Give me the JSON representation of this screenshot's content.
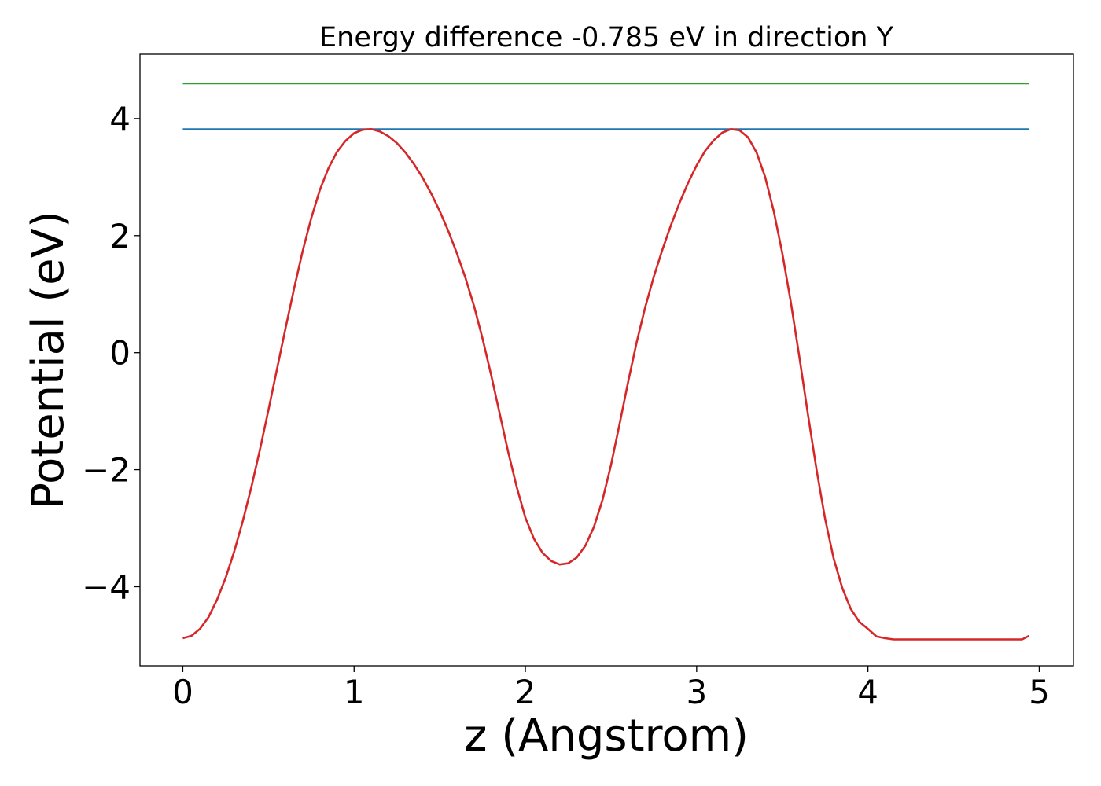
{
  "chart_data": {
    "type": "line",
    "title": "Energy difference -0.785 eV in direction Y",
    "xlabel": "z (Angstrom)",
    "ylabel": "Potential (eV)",
    "xlim": [
      -0.25,
      5.2
    ],
    "ylim": [
      -5.35,
      5.1
    ],
    "xticks": [
      0,
      1,
      2,
      3,
      4,
      5
    ],
    "yticks": [
      -4,
      -2,
      0,
      2,
      4
    ],
    "ytick_labels": [
      "−4",
      "−2",
      "0",
      "2",
      "4"
    ],
    "grid": false,
    "series": [
      {
        "color": "#2ca02c",
        "x": [
          0,
          4.94
        ],
        "y": [
          4.6,
          4.6
        ]
      },
      {
        "color": "#1f77b4",
        "x": [
          0,
          4.94
        ],
        "y": [
          3.82,
          3.82
        ]
      },
      {
        "color": "#d62728",
        "x": [
          0,
          0.05,
          0.1,
          0.15,
          0.2,
          0.25,
          0.3,
          0.35,
          0.4,
          0.45,
          0.5,
          0.55,
          0.6,
          0.65,
          0.7,
          0.75,
          0.8,
          0.85,
          0.9,
          0.95,
          1.0,
          1.05,
          1.1,
          1.15,
          1.2,
          1.25,
          1.3,
          1.35,
          1.4,
          1.45,
          1.5,
          1.55,
          1.6,
          1.65,
          1.7,
          1.75,
          1.8,
          1.85,
          1.9,
          1.95,
          2.0,
          2.05,
          2.1,
          2.15,
          2.2,
          2.25,
          2.3,
          2.35,
          2.4,
          2.45,
          2.5,
          2.55,
          2.6,
          2.65,
          2.7,
          2.75,
          2.8,
          2.85,
          2.9,
          2.95,
          3.0,
          3.05,
          3.1,
          3.15,
          3.2,
          3.25,
          3.3,
          3.35,
          3.4,
          3.45,
          3.5,
          3.55,
          3.6,
          3.65,
          3.7,
          3.75,
          3.8,
          3.85,
          3.9,
          3.95,
          4.0,
          4.05,
          4.1,
          4.15,
          4.2,
          4.25,
          4.3,
          4.35,
          4.4,
          4.45,
          4.5,
          4.55,
          4.6,
          4.65,
          4.7,
          4.75,
          4.8,
          4.85,
          4.9,
          4.94
        ],
        "y": [
          -4.88,
          -4.84,
          -4.72,
          -4.52,
          -4.22,
          -3.85,
          -3.4,
          -2.88,
          -2.3,
          -1.66,
          -0.98,
          -0.28,
          0.42,
          1.1,
          1.74,
          2.3,
          2.78,
          3.15,
          3.43,
          3.62,
          3.75,
          3.81,
          3.82,
          3.78,
          3.7,
          3.58,
          3.42,
          3.22,
          2.99,
          2.72,
          2.42,
          2.08,
          1.7,
          1.28,
          0.8,
          0.24,
          -0.38,
          -1.04,
          -1.7,
          -2.3,
          -2.82,
          -3.18,
          -3.42,
          -3.56,
          -3.62,
          -3.6,
          -3.5,
          -3.3,
          -2.98,
          -2.52,
          -1.92,
          -1.22,
          -0.5,
          0.18,
          0.78,
          1.3,
          1.76,
          2.18,
          2.56,
          2.9,
          3.2,
          3.45,
          3.63,
          3.76,
          3.82,
          3.8,
          3.68,
          3.42,
          3.0,
          2.42,
          1.7,
          0.86,
          -0.08,
          -1.06,
          -2.0,
          -2.84,
          -3.52,
          -4.02,
          -4.38,
          -4.6,
          -4.72,
          -4.85,
          -4.88,
          -4.9,
          -4.9,
          -4.9,
          -4.9,
          -4.9,
          -4.9,
          -4.9,
          -4.9,
          -4.9,
          -4.9,
          -4.9,
          -4.9,
          -4.9,
          -4.9,
          -4.9,
          -4.9,
          -4.84
        ]
      }
    ]
  }
}
